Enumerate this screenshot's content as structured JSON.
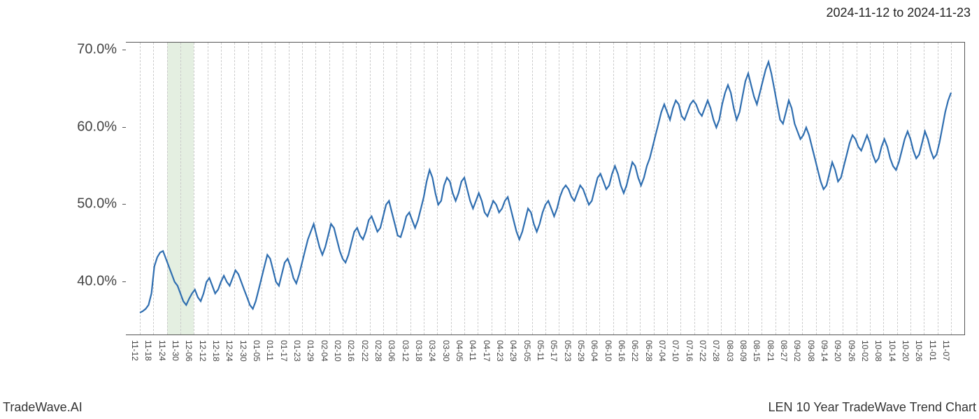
{
  "header": {
    "date_range": "2024-11-12 to 2024-11-23"
  },
  "footer": {
    "left": "TradeWave.AI",
    "right": "LEN 10 Year TradeWave Trend Chart"
  },
  "chart": {
    "type": "line",
    "line_color": "#2f6eb0",
    "background_color": "#ffffff",
    "grid_color": "#cccccc",
    "axis_color": "#555555",
    "highlight_band": {
      "start_index": 2,
      "end_index": 4,
      "color": "#d9e8d4"
    },
    "ylim": [
      33,
      71
    ],
    "yticks": [
      40.0,
      50.0,
      60.0,
      70.0
    ],
    "ytick_labels": [
      "40.0%",
      "50.0%",
      "60.0%",
      "70.0%"
    ],
    "xlabels": [
      "11-12",
      "11-18",
      "11-24",
      "11-30",
      "12-06",
      "12-12",
      "12-18",
      "12-24",
      "12-30",
      "01-05",
      "01-11",
      "01-17",
      "01-23",
      "01-29",
      "02-04",
      "02-10",
      "02-16",
      "02-22",
      "02-28",
      "03-06",
      "03-12",
      "03-18",
      "03-24",
      "03-30",
      "04-05",
      "04-11",
      "04-17",
      "04-23",
      "04-29",
      "05-05",
      "05-11",
      "05-17",
      "05-23",
      "05-29",
      "06-04",
      "06-10",
      "06-16",
      "06-22",
      "06-28",
      "07-04",
      "07-10",
      "07-16",
      "07-22",
      "07-28",
      "08-03",
      "08-09",
      "08-15",
      "08-21",
      "08-27",
      "09-02",
      "09-08",
      "09-14",
      "09-20",
      "09-26",
      "10-02",
      "10-08",
      "10-14",
      "10-20",
      "10-26",
      "11-01",
      "11-07"
    ],
    "values": [
      36.0,
      36.2,
      36.5,
      37.0,
      38.5,
      42.0,
      43.2,
      43.8,
      44.0,
      43.0,
      42.0,
      41.0,
      40.0,
      39.5,
      38.5,
      37.5,
      37.0,
      37.8,
      38.5,
      39.0,
      38.0,
      37.5,
      38.5,
      40.0,
      40.5,
      39.5,
      38.5,
      39.0,
      40.0,
      40.8,
      40.0,
      39.5,
      40.5,
      41.5,
      41.0,
      40.0,
      39.0,
      38.0,
      37.0,
      36.5,
      37.5,
      39.0,
      40.5,
      42.0,
      43.5,
      43.0,
      41.5,
      40.0,
      39.5,
      41.0,
      42.5,
      43.0,
      42.0,
      40.5,
      39.8,
      41.0,
      42.5,
      44.0,
      45.5,
      46.5,
      47.5,
      46.0,
      44.5,
      43.5,
      44.5,
      46.0,
      47.5,
      47.0,
      45.5,
      44.0,
      43.0,
      42.5,
      43.5,
      45.0,
      46.5,
      47.0,
      46.0,
      45.5,
      46.5,
      48.0,
      48.5,
      47.5,
      46.5,
      47.0,
      48.5,
      50.0,
      50.5,
      49.0,
      47.5,
      46.0,
      45.8,
      47.0,
      48.5,
      49.0,
      48.0,
      47.0,
      48.0,
      49.5,
      51.0,
      53.0,
      54.5,
      53.5,
      51.5,
      50.0,
      50.5,
      52.5,
      53.5,
      53.0,
      51.5,
      50.5,
      51.5,
      53.0,
      53.5,
      52.0,
      50.5,
      49.5,
      50.5,
      51.5,
      50.5,
      49.0,
      48.5,
      49.5,
      50.5,
      50.0,
      49.0,
      49.5,
      50.5,
      51.0,
      49.5,
      48.0,
      46.5,
      45.5,
      46.5,
      48.0,
      49.5,
      49.0,
      47.5,
      46.5,
      47.5,
      49.0,
      50.0,
      50.5,
      49.5,
      48.5,
      49.5,
      51.0,
      52.0,
      52.5,
      52.0,
      51.0,
      50.5,
      51.5,
      52.5,
      52.0,
      51.0,
      50.0,
      50.5,
      52.0,
      53.5,
      54.0,
      53.0,
      52.0,
      52.5,
      54.0,
      55.0,
      54.0,
      52.5,
      51.5,
      52.5,
      54.0,
      55.5,
      55.0,
      53.5,
      52.5,
      53.5,
      55.0,
      56.0,
      57.5,
      59.0,
      60.5,
      62.0,
      63.0,
      62.0,
      61.0,
      62.5,
      63.5,
      63.0,
      61.5,
      61.0,
      62.0,
      63.0,
      63.5,
      63.0,
      62.0,
      61.5,
      62.5,
      63.5,
      62.5,
      61.0,
      60.0,
      61.0,
      63.0,
      64.5,
      65.5,
      64.5,
      62.5,
      61.0,
      62.0,
      64.0,
      66.0,
      67.0,
      65.5,
      64.0,
      63.0,
      64.5,
      66.0,
      67.5,
      68.5,
      67.0,
      65.0,
      63.0,
      61.0,
      60.5,
      62.0,
      63.5,
      62.5,
      60.5,
      59.5,
      58.5,
      59.0,
      60.0,
      59.0,
      57.5,
      56.0,
      54.5,
      53.0,
      52.0,
      52.5,
      54.0,
      55.5,
      54.5,
      53.0,
      53.5,
      55.0,
      56.5,
      58.0,
      59.0,
      58.5,
      57.5,
      57.0,
      58.0,
      59.0,
      58.0,
      56.5,
      55.5,
      56.0,
      57.5,
      58.5,
      57.5,
      56.0,
      55.0,
      54.5,
      55.5,
      57.0,
      58.5,
      59.5,
      58.5,
      57.0,
      56.0,
      56.5,
      58.0,
      59.5,
      58.5,
      57.0,
      56.0,
      56.5,
      58.0,
      60.0,
      62.0,
      63.5,
      64.5
    ],
    "label_fontsize": 12,
    "ytick_fontsize": 20,
    "title_fontsize": 18,
    "line_width": 2.2
  }
}
